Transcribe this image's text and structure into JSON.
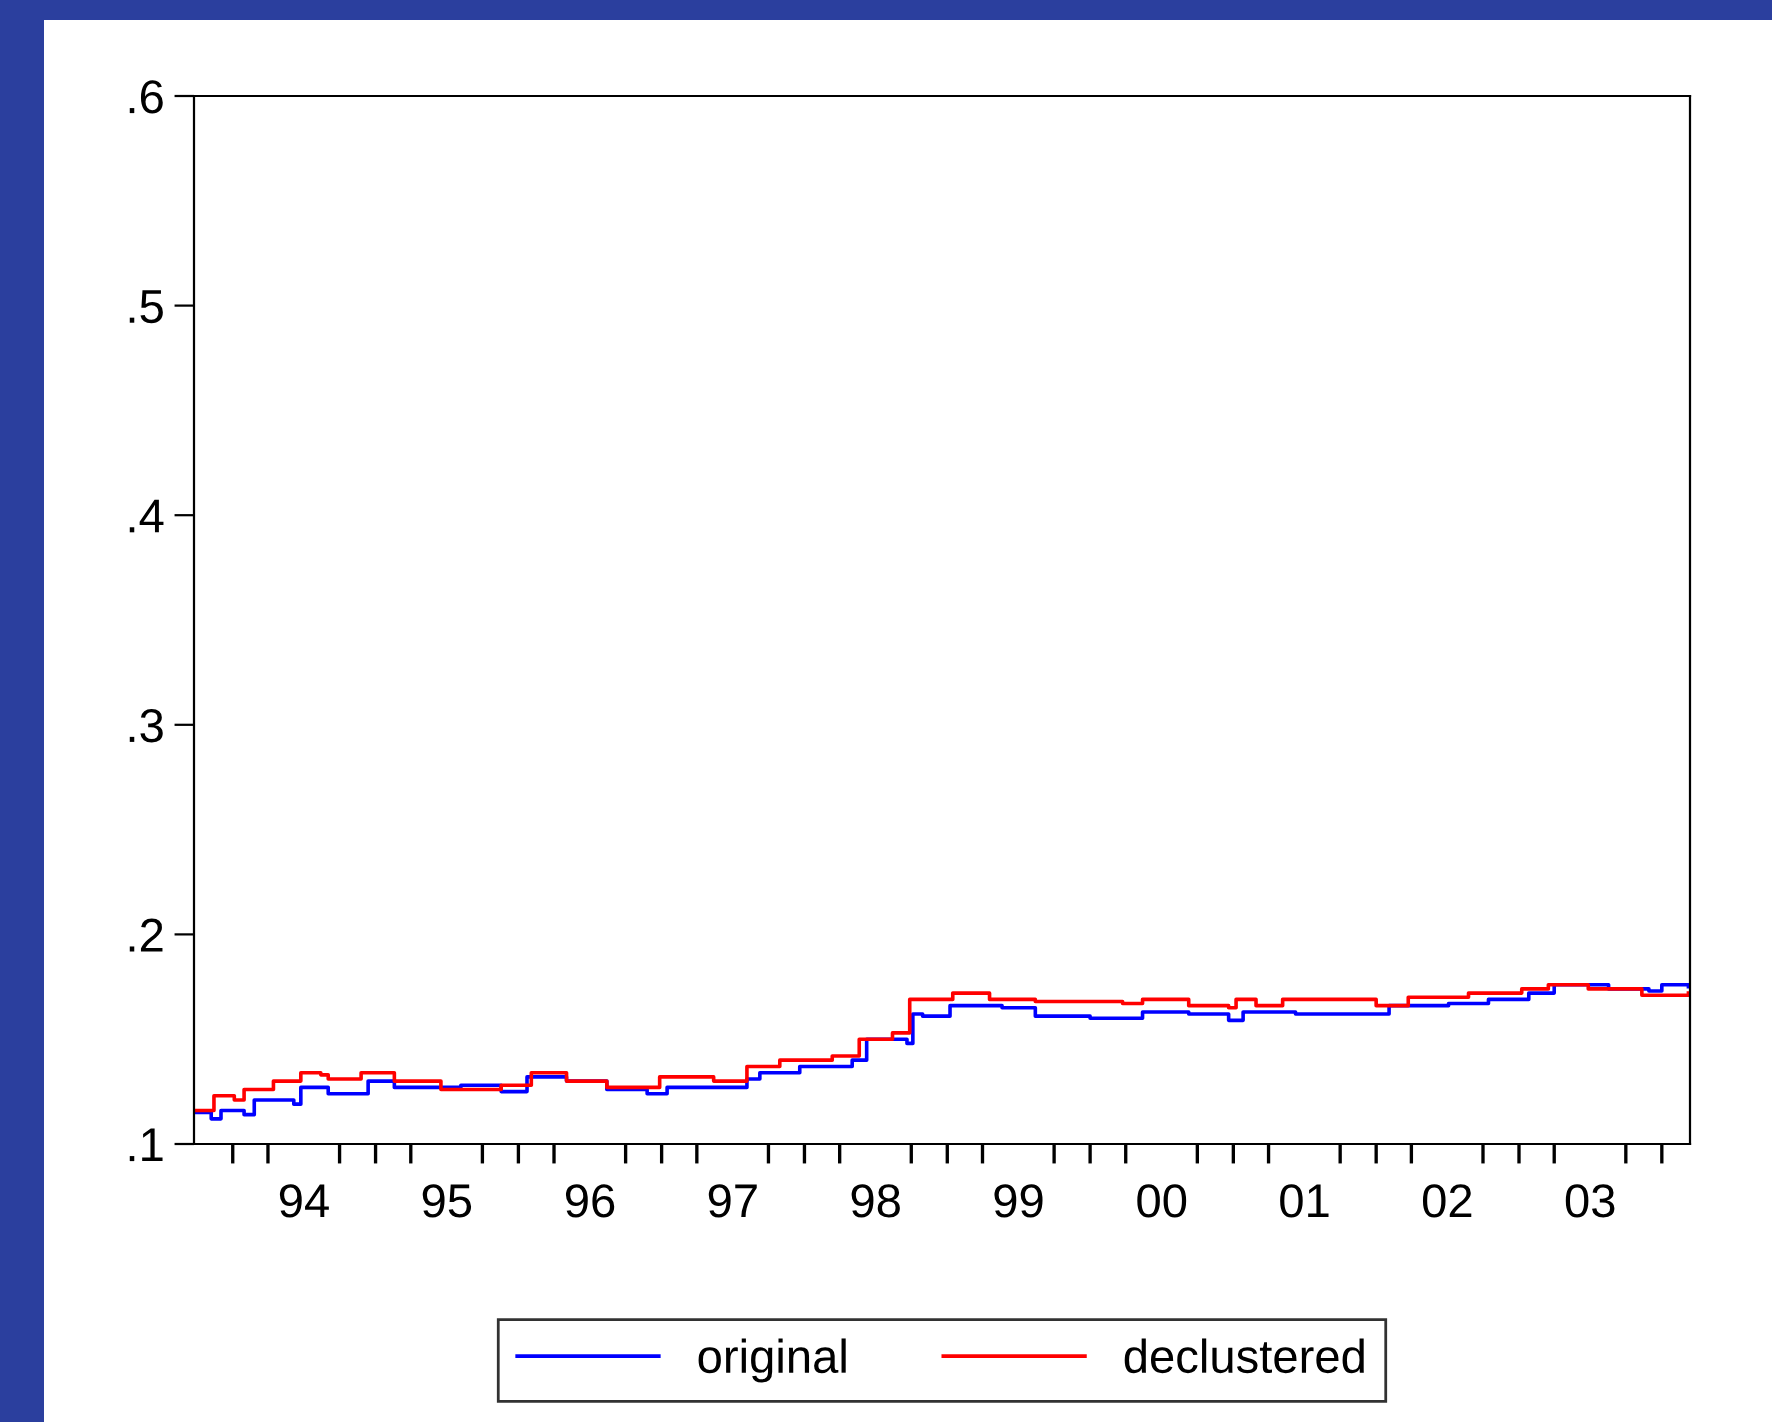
{
  "chart_data": {
    "type": "step",
    "xlim": [
      "1993-09-24",
      "2004-03-13"
    ],
    "ylim": [
      0.1,
      0.6
    ],
    "yticks": [
      {
        "value": 0.1,
        "label": ".1"
      },
      {
        "value": 0.2,
        "label": ".2"
      },
      {
        "value": 0.3,
        "label": ".3"
      },
      {
        "value": 0.4,
        "label": ".4"
      },
      {
        "value": 0.5,
        "label": ".5"
      },
      {
        "value": 0.6,
        "label": ".6"
      }
    ],
    "xticks": [
      {
        "value": "1994-07-02",
        "label": "94"
      },
      {
        "value": "1995-07-02",
        "label": "95"
      },
      {
        "value": "1996-07-02",
        "label": "96"
      },
      {
        "value": "1997-07-02",
        "label": "97"
      },
      {
        "value": "1998-07-02",
        "label": "98"
      },
      {
        "value": "1999-07-02",
        "label": "99"
      },
      {
        "value": "2000-07-02",
        "label": "00"
      },
      {
        "value": "2001-07-02",
        "label": "01"
      },
      {
        "value": "2002-07-02",
        "label": "02"
      },
      {
        "value": "2003-07-02",
        "label": "03"
      },
      {
        "value": "1994-01-01",
        "label": null
      },
      {
        "value": "1994-04-01",
        "label": null
      },
      {
        "value": "1994-10-01",
        "label": null
      },
      {
        "value": "1995-01-01",
        "label": null
      },
      {
        "value": "1995-04-01",
        "label": null
      },
      {
        "value": "1995-10-01",
        "label": null
      },
      {
        "value": "1996-01-01",
        "label": null
      },
      {
        "value": "1996-04-01",
        "label": null
      },
      {
        "value": "1996-10-01",
        "label": null
      },
      {
        "value": "1997-01-01",
        "label": null
      },
      {
        "value": "1997-04-01",
        "label": null
      },
      {
        "value": "1997-10-01",
        "label": null
      },
      {
        "value": "1998-01-01",
        "label": null
      },
      {
        "value": "1998-04-01",
        "label": null
      },
      {
        "value": "1998-10-01",
        "label": null
      },
      {
        "value": "1999-01-01",
        "label": null
      },
      {
        "value": "1999-04-01",
        "label": null
      },
      {
        "value": "1999-10-01",
        "label": null
      },
      {
        "value": "2000-01-01",
        "label": null
      },
      {
        "value": "2000-04-01",
        "label": null
      },
      {
        "value": "2000-10-01",
        "label": null
      },
      {
        "value": "2001-01-01",
        "label": null
      },
      {
        "value": "2001-04-01",
        "label": null
      },
      {
        "value": "2001-10-01",
        "label": null
      },
      {
        "value": "2002-01-01",
        "label": null
      },
      {
        "value": "2002-04-01",
        "label": null
      },
      {
        "value": "2002-10-01",
        "label": null
      },
      {
        "value": "2003-01-01",
        "label": null
      },
      {
        "value": "2003-04-01",
        "label": null
      },
      {
        "value": "2003-10-01",
        "label": null
      },
      {
        "value": "2004-01-01",
        "label": null
      }
    ],
    "legend": "bottom",
    "line_style": "solid",
    "series": [
      {
        "name": "original",
        "color": "#0000ff",
        "x": [
          "1993-09-27",
          "1993-11-07",
          "1993-12-02",
          "1994-01-30",
          "1994-02-25",
          "1994-06-06",
          "1994-06-24",
          "1994-09-02",
          "1994-12-13",
          "1995-02-18",
          "1995-05-11",
          "1995-08-07",
          "1995-11-18",
          "1996-01-23",
          "1996-05-03",
          "1996-08-14",
          "1996-11-25",
          "1997-01-15",
          "1997-08-07",
          "1997-09-09",
          "1997-12-20",
          "1998-05-03",
          "1998-06-09",
          "1998-09-20",
          "1998-10-05",
          "1998-10-30",
          "1999-01-08",
          "1999-05-21",
          "1999-08-14",
          "2000-01-01",
          "2000-05-14",
          "2000-09-09",
          "2000-12-20",
          "2001-01-26",
          "2001-06-09",
          "2002-01-01",
          "2002-02-03",
          "2002-07-05",
          "2002-10-15",
          "2003-01-26",
          "2003-04-01",
          "2003-08-18",
          "2003-11-29",
          "2004-01-01",
          "2004-03-09"
        ],
        "values": [
          0.115,
          0.112,
          0.116,
          0.114,
          0.121,
          0.119,
          0.127,
          0.124,
          0.13,
          0.127,
          0.127,
          0.128,
          0.125,
          0.132,
          0.13,
          0.126,
          0.124,
          0.127,
          0.131,
          0.134,
          0.137,
          0.14,
          0.15,
          0.148,
          0.162,
          0.161,
          0.166,
          0.165,
          0.161,
          0.16,
          0.163,
          0.162,
          0.159,
          0.163,
          0.162,
          0.162,
          0.166,
          0.167,
          0.169,
          0.172,
          0.176,
          0.174,
          0.173,
          0.176,
          0.175
        ]
      },
      {
        "name": "declustered",
        "color": "#ff0000",
        "x": [
          "1993-09-27",
          "1993-11-14",
          "1994-01-05",
          "1994-01-30",
          "1994-04-15",
          "1994-06-24",
          "1994-08-14",
          "1994-09-02",
          "1994-11-25",
          "1995-02-18",
          "1995-06-17",
          "1995-09-09",
          "1995-11-18",
          "1996-02-03",
          "1996-05-03",
          "1996-08-14",
          "1996-12-13",
          "1996-12-27",
          "1997-05-14",
          "1997-08-07",
          "1997-10-30",
          "1998-03-13",
          "1998-05-21",
          "1998-08-14",
          "1998-09-27",
          "1999-01-15",
          "1999-04-19",
          "1999-08-14",
          "2000-03-24",
          "2000-05-14",
          "2000-09-09",
          "2000-12-20",
          "2001-01-08",
          "2001-02-28",
          "2001-05-07",
          "2002-01-01",
          "2002-03-24",
          "2002-08-25",
          "2003-01-08",
          "2003-03-17",
          "2003-06-27",
          "2003-11-11",
          "2004-03-09"
        ],
        "values": [
          0.116,
          0.123,
          0.121,
          0.126,
          0.13,
          0.134,
          0.133,
          0.131,
          0.134,
          0.13,
          0.126,
          0.126,
          0.128,
          0.134,
          0.13,
          0.127,
          0.127,
          0.132,
          0.13,
          0.137,
          0.14,
          0.142,
          0.15,
          0.153,
          0.169,
          0.172,
          0.169,
          0.168,
          0.167,
          0.169,
          0.166,
          0.165,
          0.169,
          0.166,
          0.169,
          0.166,
          0.17,
          0.172,
          0.174,
          0.176,
          0.174,
          0.171,
          0.172
        ]
      }
    ]
  }
}
